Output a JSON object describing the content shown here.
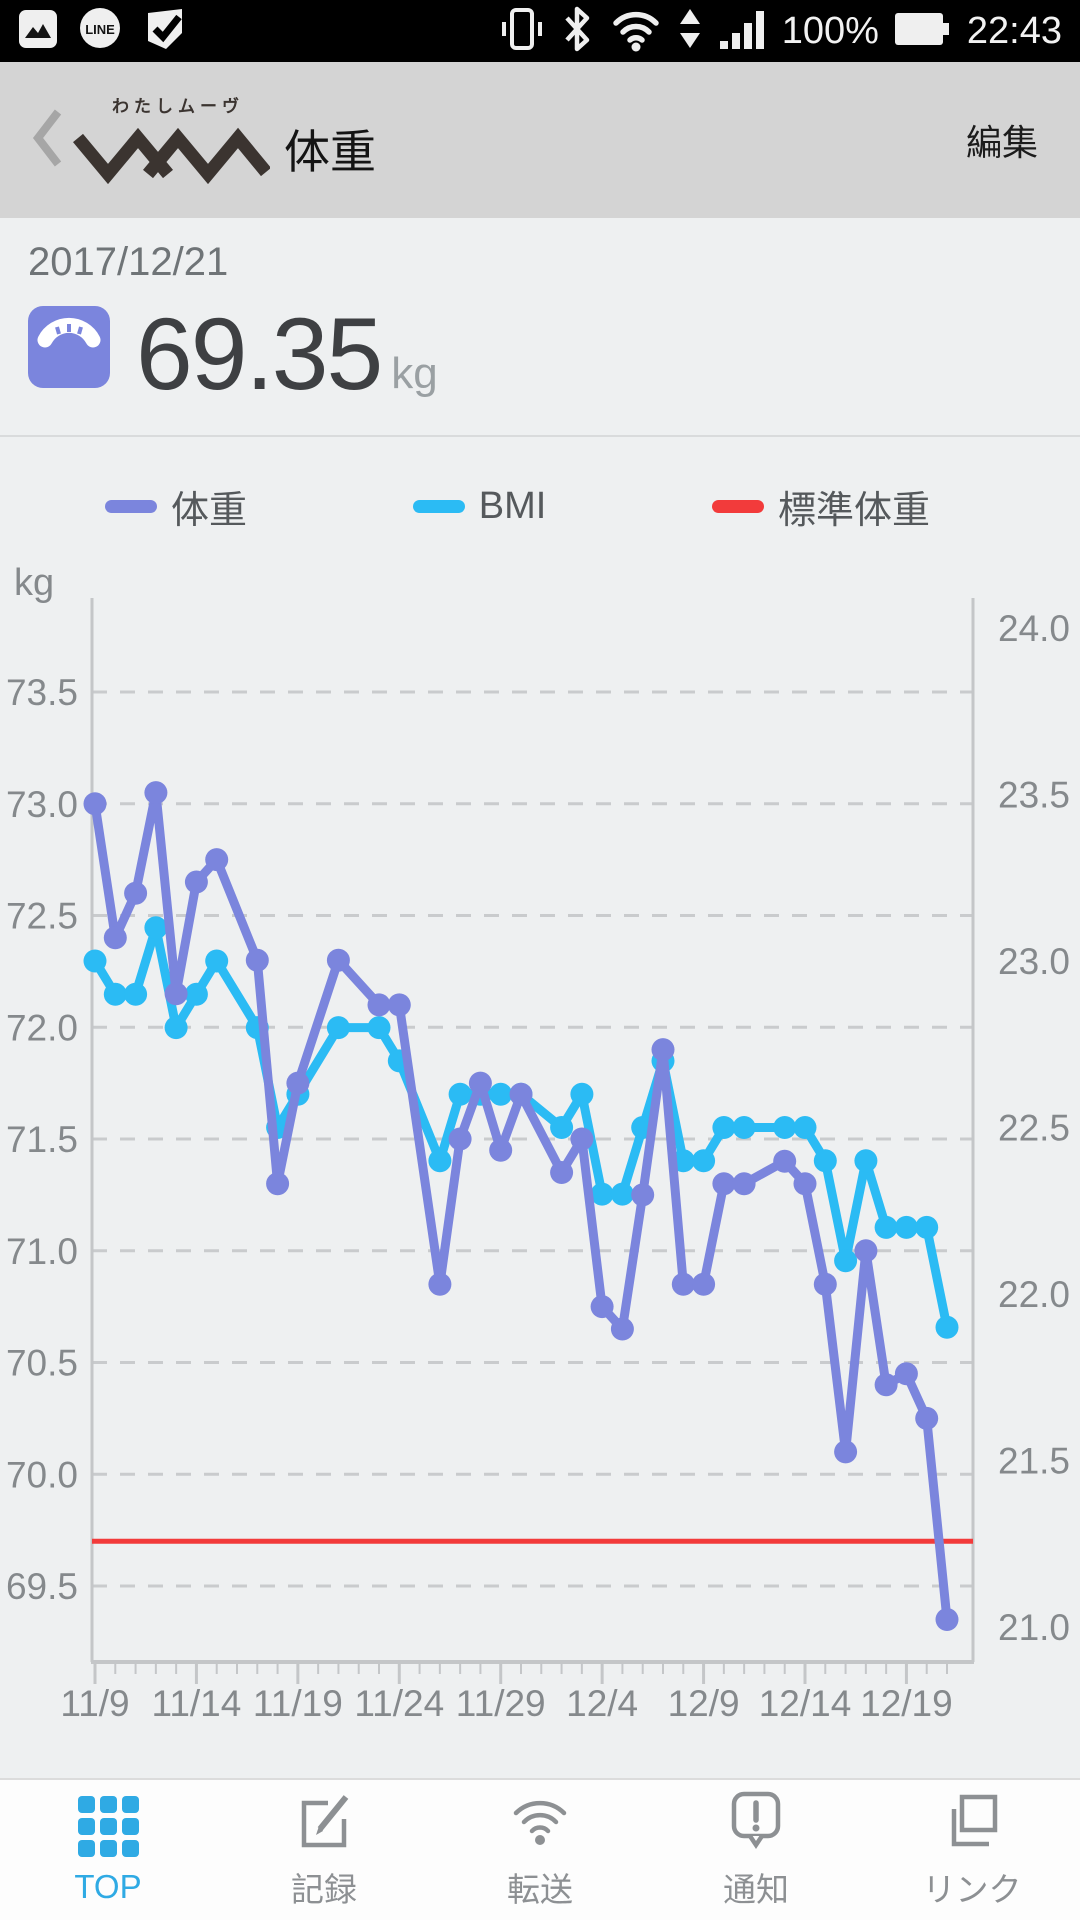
{
  "status_bar": {
    "time": "22:43",
    "battery_percent": "100%",
    "icons": [
      "gallery-icon",
      "line-app-icon",
      "tasks-check-icon",
      "vibrate-icon",
      "bluetooth-icon",
      "wifi-icon",
      "data-arrows-icon",
      "signal-icon",
      "battery-icon"
    ]
  },
  "header": {
    "logo_furigana": "わたしムーヴ",
    "logo_name": "WM",
    "title": "体重",
    "edit_button": "編集"
  },
  "weight_card": {
    "date": "2017/12/21",
    "value": "69.35",
    "unit": "kg"
  },
  "legend": [
    {
      "label": "体重",
      "color": "#7b85dd"
    },
    {
      "label": "BMI",
      "color": "#2bbbf4"
    },
    {
      "label": "標準体重",
      "color": "#f23b3b"
    }
  ],
  "chart_data": {
    "type": "line",
    "unit_label": "kg",
    "colors": {
      "grid": "#c9cbcd",
      "axis": "#c4c6c8",
      "axis_text": "#85898c"
    },
    "kg_axis": {
      "min": 69.5,
      "max": 73.5,
      "step": 0.5,
      "side": "left"
    },
    "bmi_axis": {
      "min": 21.0,
      "max": 24.0,
      "step": 0.5,
      "side": "right"
    },
    "x_tick_labels": [
      "11/9",
      "11/14",
      "11/19",
      "11/24",
      "11/29",
      "12/4",
      "12/9",
      "12/14",
      "12/19"
    ],
    "dates": [
      "11/9",
      "11/10",
      "11/11",
      "11/12",
      "11/13",
      "11/14",
      "11/15",
      "11/16",
      "11/17",
      "11/18",
      "11/19",
      "11/20",
      "11/21",
      "11/22",
      "11/23",
      "11/24",
      "11/25",
      "11/26",
      "11/27",
      "11/28",
      "11/29",
      "11/30",
      "12/1",
      "12/2",
      "12/3",
      "12/4",
      "12/5",
      "12/6",
      "12/7",
      "12/8",
      "12/9",
      "12/10",
      "12/11",
      "12/12",
      "12/13",
      "12/14",
      "12/15",
      "12/16",
      "12/17",
      "12/18",
      "12/19",
      "12/20",
      "12/21"
    ],
    "series": [
      {
        "name": "体重",
        "axis": "kg",
        "color": "#7b85dd",
        "values": [
          73.0,
          72.4,
          72.6,
          73.05,
          72.15,
          72.65,
          72.75,
          null,
          72.3,
          71.3,
          71.75,
          null,
          72.3,
          null,
          72.1,
          72.1,
          null,
          70.85,
          71.5,
          71.75,
          71.45,
          71.7,
          null,
          71.35,
          71.5,
          70.75,
          70.65,
          71.25,
          71.9,
          70.85,
          70.85,
          71.3,
          71.3,
          null,
          71.4,
          71.3,
          70.85,
          70.1,
          71.0,
          70.4,
          70.45,
          70.25,
          69.35
        ]
      },
      {
        "name": "BMI",
        "axis": "bmi",
        "color": "#2bbbf4",
        "values": [
          23.0,
          22.9,
          22.9,
          23.1,
          22.8,
          22.9,
          23.0,
          null,
          22.8,
          22.5,
          22.6,
          null,
          22.8,
          null,
          22.8,
          22.7,
          null,
          22.4,
          22.6,
          22.6,
          22.6,
          22.6,
          null,
          22.5,
          22.6,
          22.3,
          22.3,
          22.5,
          22.7,
          22.4,
          22.4,
          22.5,
          22.5,
          null,
          22.5,
          22.5,
          22.4,
          22.1,
          22.4,
          22.2,
          22.2,
          22.2,
          21.9
        ]
      },
      {
        "name": "標準体重",
        "axis": "kg",
        "color": "#f23b3b",
        "constant": 69.7
      }
    ]
  },
  "bottom_nav": {
    "items": [
      {
        "label": "TOP",
        "icon": "grid-icon",
        "active": true
      },
      {
        "label": "記録",
        "icon": "record-pencil-icon",
        "active": false
      },
      {
        "label": "転送",
        "icon": "transfer-wifi-icon",
        "active": false
      },
      {
        "label": "通知",
        "icon": "notification-icon",
        "active": false
      },
      {
        "label": "リンク",
        "icon": "link-icon",
        "active": false
      }
    ]
  }
}
